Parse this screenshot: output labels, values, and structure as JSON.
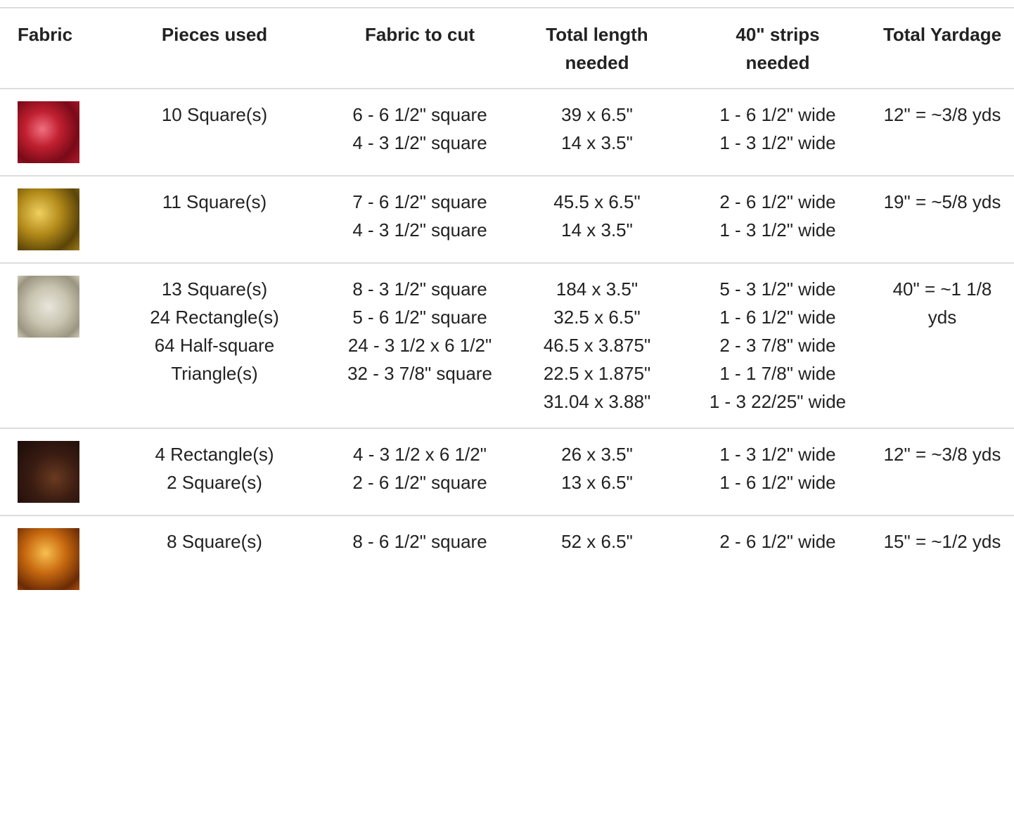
{
  "table": {
    "headers": [
      "Fabric",
      "Pieces used",
      "Fabric to cut",
      "Total length needed",
      "40\" strips needed",
      "Total Yardage"
    ],
    "rows": [
      {
        "pieces": [
          "10 Square(s)"
        ],
        "cut": [
          "6 - 6 1/2\" square",
          "4 - 3 1/2\" square"
        ],
        "length": [
          "39 x 6.5\"",
          "14 x 3.5\""
        ],
        "strips": [
          "1 - 6 1/2\" wide",
          "1 - 3 1/2\" wide"
        ],
        "yardage": [
          "12\" = ~3/8 yds"
        ]
      },
      {
        "pieces": [
          "11 Square(s)"
        ],
        "cut": [
          "7 - 6 1/2\" square",
          "4 - 3 1/2\" square"
        ],
        "length": [
          "45.5 x 6.5\"",
          "14 x 3.5\""
        ],
        "strips": [
          "2 - 6 1/2\" wide",
          "1 - 3 1/2\" wide"
        ],
        "yardage": [
          "19\" = ~5/8 yds"
        ]
      },
      {
        "pieces": [
          "13 Square(s)",
          "24 Rectangle(s)",
          "64 Half-square Triangle(s)"
        ],
        "cut": [
          "8 - 3 1/2\" square",
          "5 - 6 1/2\" square",
          "24 - 3 1/2 x 6 1/2\"",
          "32 - 3 7/8\" square"
        ],
        "length": [
          "184 x 3.5\"",
          "32.5 x 6.5\"",
          "46.5 x 3.875\"",
          "22.5 x 1.875\"",
          "31.04 x 3.88\""
        ],
        "strips": [
          "5 - 3 1/2\" wide",
          "1 - 6 1/2\" wide",
          "2 - 3 7/8\" wide",
          "1 - 1 7/8\" wide",
          "1 - 3 22/25\" wide"
        ],
        "yardage": [
          "40\" = ~1 1/8 yds"
        ]
      },
      {
        "pieces": [
          "4 Rectangle(s)",
          "2 Square(s)"
        ],
        "cut": [
          "4 - 3 1/2 x 6 1/2\"",
          "2 - 6 1/2\" square"
        ],
        "length": [
          "26 x 3.5\"",
          "13 x 6.5\""
        ],
        "strips": [
          "1 - 3 1/2\" wide",
          "1 - 6 1/2\" wide"
        ],
        "yardage": [
          "12\" = ~3/8 yds"
        ]
      },
      {
        "pieces": [
          "8 Square(s)"
        ],
        "cut": [
          "8 - 6 1/2\" square"
        ],
        "length": [
          "52 x 6.5\""
        ],
        "strips": [
          "2 - 6 1/2\" wide"
        ],
        "yardage": [
          "15\" = ~1/2 yds"
        ]
      }
    ]
  }
}
